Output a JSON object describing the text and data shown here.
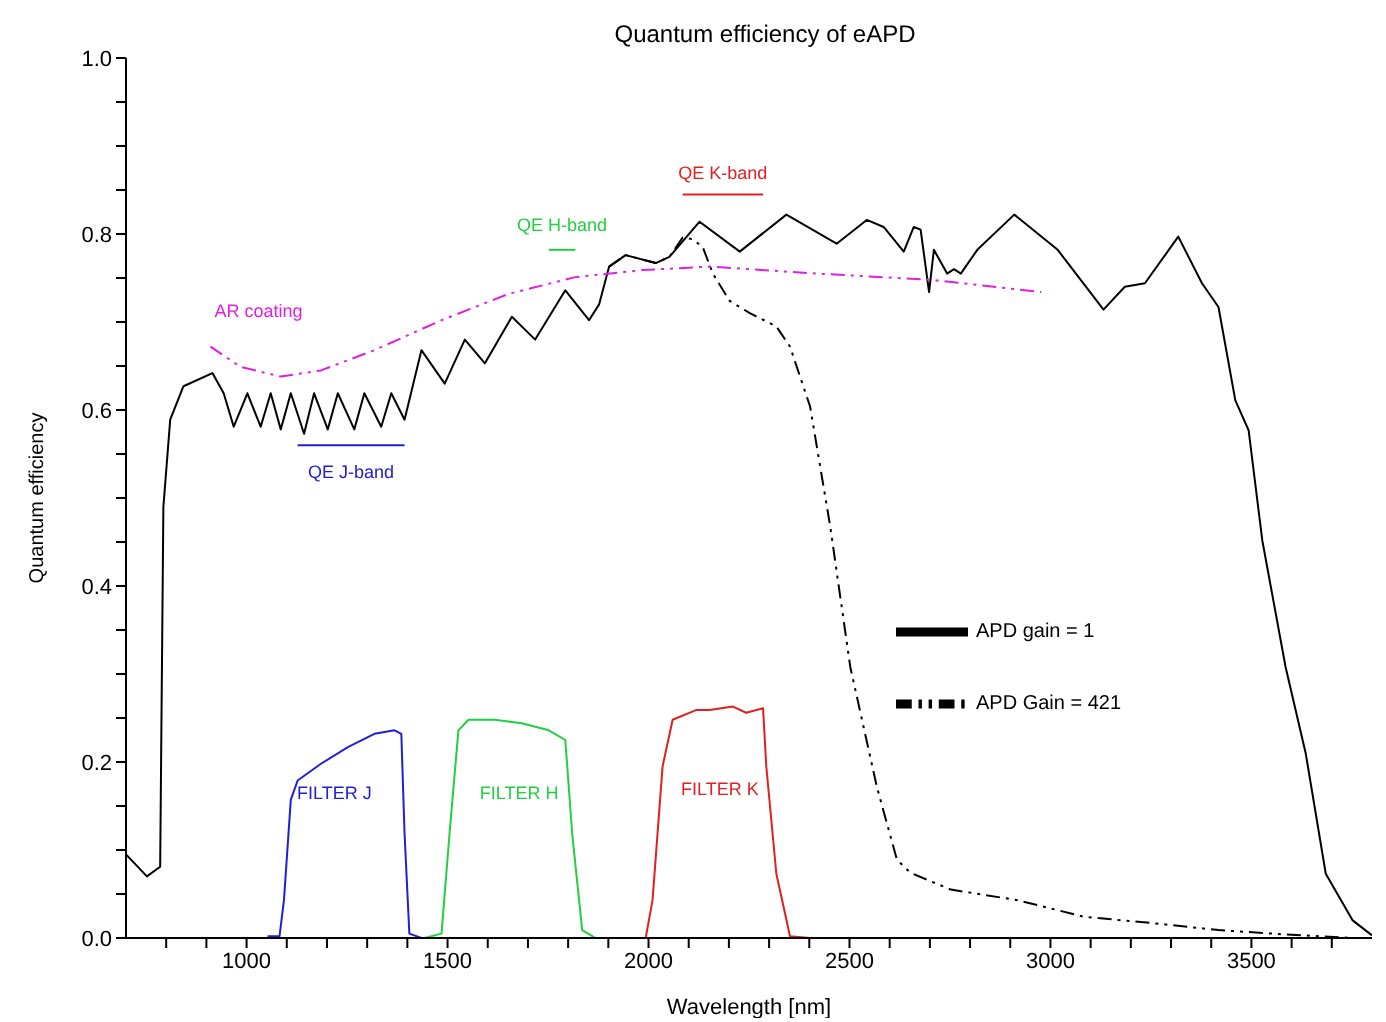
{
  "chart_data": {
    "type": "line",
    "title": "Quantum efficiency of eAPD",
    "xlabel": "Wavelength [nm]",
    "ylabel": "Quantum efficiency",
    "xlim": [
      700,
      3800
    ],
    "ylim": [
      0,
      1
    ],
    "xticks": [
      {
        "value": 800,
        "label": null
      },
      {
        "value": 900,
        "label": null
      },
      1000,
      {
        "value": 1100,
        "label": null
      },
      {
        "value": 1200,
        "label": null
      },
      {
        "value": 1300,
        "label": null
      },
      {
        "value": 1400,
        "label": null
      },
      1500,
      {
        "value": 1600,
        "label": null
      },
      {
        "value": 1700,
        "label": null
      },
      {
        "value": 1800,
        "label": null
      },
      {
        "value": 1900,
        "label": null
      },
      2000,
      {
        "value": 2100,
        "label": null
      },
      {
        "value": 2200,
        "label": null
      },
      {
        "value": 2300,
        "label": null
      },
      {
        "value": 2400,
        "label": null
      },
      2500,
      {
        "value": 2600,
        "label": null
      },
      {
        "value": 2700,
        "label": null
      },
      {
        "value": 2800,
        "label": null
      },
      {
        "value": 2900,
        "label": null
      },
      3000,
      {
        "value": 3100,
        "label": null
      },
      {
        "value": 3200,
        "label": null
      },
      {
        "value": 3300,
        "label": null
      },
      {
        "value": 3400,
        "label": null
      },
      3500,
      {
        "value": 3600,
        "label": null
      },
      {
        "value": 3700,
        "label": null
      }
    ],
    "yticks": [
      {
        "value": 0,
        "label": "0.0"
      },
      {
        "value": 0.05,
        "label": null
      },
      {
        "value": 0.1,
        "label": null
      },
      {
        "value": 0.15,
        "label": null
      },
      0.2,
      {
        "value": 0.25,
        "label": null
      },
      {
        "value": 0.3,
        "label": null
      },
      {
        "value": 0.35,
        "label": null
      },
      0.4,
      {
        "value": 0.45,
        "label": null
      },
      {
        "value": 0.5,
        "label": null
      },
      {
        "value": 0.55,
        "label": null
      },
      0.6,
      {
        "value": 0.65,
        "label": null
      },
      {
        "value": 0.7,
        "label": null
      },
      {
        "value": 0.75,
        "label": null
      },
      0.8,
      {
        "value": 0.85,
        "label": null
      },
      {
        "value": 0.9,
        "label": null
      },
      {
        "value": 0.95,
        "label": null
      },
      {
        "value": 1,
        "label": "1.0"
      }
    ],
    "legend": "right",
    "marker": "none",
    "series": [
      {
        "name": "APD gain = 1",
        "color": "#000000",
        "line_style": "solid",
        "x": [
          700,
          752,
          785,
          793,
          810,
          843,
          915,
          943,
          968,
          1002,
          1035,
          1060,
          1085,
          1110,
          1143,
          1168,
          1202,
          1227,
          1268,
          1293,
          1335,
          1360,
          1393,
          1435,
          1493,
          1543,
          1593,
          1660,
          1718,
          1793,
          1852,
          1877,
          1902,
          1943,
          2018,
          2052,
          2127,
          2227,
          2343,
          2468,
          2543,
          2585,
          2635,
          2660,
          2677,
          2698,
          2710,
          2743,
          2760,
          2777,
          2818,
          2910,
          3018,
          3132,
          3185,
          3235,
          3318,
          3377,
          3418,
          3460,
          3493,
          3527,
          3585,
          3635,
          3685,
          3752,
          3800
        ],
        "values": [
          0.095,
          0.07,
          0.081,
          0.49,
          0.589,
          0.627,
          0.642,
          0.619,
          0.581,
          0.619,
          0.581,
          0.619,
          0.578,
          0.619,
          0.573,
          0.619,
          0.578,
          0.619,
          0.578,
          0.619,
          0.581,
          0.619,
          0.589,
          0.668,
          0.63,
          0.68,
          0.653,
          0.706,
          0.68,
          0.736,
          0.702,
          0.72,
          0.763,
          0.776,
          0.767,
          0.774,
          0.814,
          0.78,
          0.822,
          0.789,
          0.816,
          0.808,
          0.78,
          0.808,
          0.805,
          0.734,
          0.782,
          0.755,
          0.76,
          0.755,
          0.782,
          0.822,
          0.782,
          0.714,
          0.74,
          0.744,
          0.797,
          0.744,
          0.717,
          0.611,
          0.577,
          0.452,
          0.308,
          0.21,
          0.073,
          0.02,
          0.003
        ]
      },
      {
        "name": "APD Gain = 421",
        "color": "#000000",
        "line_style": "dashed",
        "x": [
          1902,
          1943,
          2018,
          2052,
          2085,
          2110,
          2135,
          2160,
          2202,
          2252,
          2318,
          2352,
          2402,
          2452,
          2502,
          2568,
          2618,
          2652,
          2752,
          2918,
          3085,
          3252,
          3418,
          3585,
          3752
        ],
        "values": [
          0.763,
          0.776,
          0.767,
          0.774,
          0.796,
          0.794,
          0.785,
          0.755,
          0.724,
          0.71,
          0.695,
          0.672,
          0.604,
          0.468,
          0.308,
          0.172,
          0.089,
          0.074,
          0.055,
          0.043,
          0.024,
          0.017,
          0.009,
          0.004,
          0.0
        ]
      },
      {
        "name": "AR coating",
        "color": "#e020e0",
        "line_style": "dashed",
        "x": [
          910,
          985,
          1085,
          1185,
          1318,
          1485,
          1652,
          1818,
          1985,
          2152,
          2418,
          2702,
          2977
        ],
        "values": [
          0.672,
          0.649,
          0.638,
          0.645,
          0.668,
          0.702,
          0.732,
          0.751,
          0.759,
          0.763,
          0.755,
          0.748,
          0.734
        ]
      },
      {
        "name": "FILTER J",
        "color": "#2020d0",
        "line_style": "solid",
        "x": [
          1052,
          1082,
          1093,
          1110,
          1127,
          1185,
          1252,
          1318,
          1368,
          1385,
          1393,
          1405,
          1435
        ],
        "values": [
          0.002,
          0.002,
          0.043,
          0.157,
          0.179,
          0.198,
          0.217,
          0.232,
          0.236,
          0.232,
          0.119,
          0.005,
          0.0
        ]
      },
      {
        "name": "FILTER H",
        "color": "#20d040",
        "line_style": "solid",
        "x": [
          1443,
          1485,
          1505,
          1527,
          1552,
          1618,
          1685,
          1752,
          1793,
          1810,
          1835,
          1868,
          1993
        ],
        "values": [
          0.0,
          0.005,
          0.119,
          0.236,
          0.248,
          0.248,
          0.244,
          0.236,
          0.225,
          0.119,
          0.009,
          0.0,
          0.0
        ]
      },
      {
        "name": "FILTER K",
        "color": "#e02020",
        "line_style": "solid",
        "x": [
          1993,
          2010,
          2035,
          2060,
          2118,
          2152,
          2210,
          2243,
          2285,
          2293,
          2318,
          2352,
          2402
        ],
        "values": [
          0.0,
          0.043,
          0.195,
          0.248,
          0.259,
          0.259,
          0.263,
          0.256,
          0.261,
          0.195,
          0.073,
          0.002,
          0.0
        ]
      },
      {
        "name": "QE J-band",
        "color": "#2020d0",
        "line_style": "solid",
        "x": [
          1127,
          1393
        ],
        "values": [
          0.56,
          0.56
        ]
      },
      {
        "name": "QE H-band",
        "color": "#20d040",
        "line_style": "solid",
        "x": [
          1752,
          1818
        ],
        "values": [
          0.782,
          0.782
        ]
      },
      {
        "name": "QE K-band",
        "color": "#e02020",
        "line_style": "solid",
        "x": [
          2085,
          2285
        ],
        "values": [
          0.845,
          0.845
        ]
      }
    ]
  }
}
